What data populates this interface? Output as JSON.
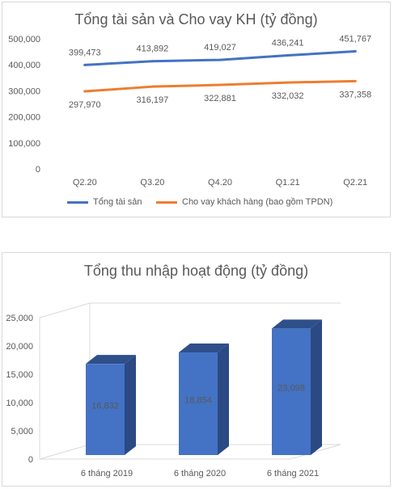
{
  "chart_data": [
    {
      "type": "line",
      "title": "Tổng tài sản và Cho vay KH (tỷ đồng)",
      "categories": [
        "Q2.20",
        "Q3.20",
        "Q4.20",
        "Q1.21",
        "Q2.21"
      ],
      "ylim": [
        0,
        500000
      ],
      "yticks": [
        "0",
        "100,000",
        "200,000",
        "300,000",
        "400,000",
        "500,000"
      ],
      "grid": false,
      "legend_position": "bottom",
      "series": [
        {
          "name": "Tổng tài sản",
          "color": "#4472c4",
          "values": [
            399473,
            413892,
            419027,
            436241,
            451767
          ],
          "labels": [
            "399,473",
            "413,892",
            "419,027",
            "436,241",
            "451,767"
          ],
          "label_position": "above"
        },
        {
          "name": "Cho vay khách hàng (bao gồm TPDN)",
          "color": "#ed7d31",
          "values": [
            297970,
            316197,
            322881,
            332032,
            337358
          ],
          "labels": [
            "297,970",
            "316,197",
            "322,881",
            "332,032",
            "337,358"
          ],
          "label_position": "below"
        }
      ]
    },
    {
      "type": "bar",
      "style": "3d-column",
      "title": "Tổng thu nhập hoạt động (tỷ đồng)",
      "categories": [
        "6 tháng 2019",
        "6 tháng 2020",
        "6 tháng 2021"
      ],
      "values": [
        16832,
        18854,
        23098
      ],
      "labels": [
        "16,832",
        "18,854",
        "23,098"
      ],
      "ylim": [
        0,
        25000
      ],
      "yticks": [
        "0",
        "5,000",
        "10,000",
        "15,000",
        "20,000",
        "25,000"
      ],
      "grid": false,
      "color": "#4472c4"
    }
  ]
}
